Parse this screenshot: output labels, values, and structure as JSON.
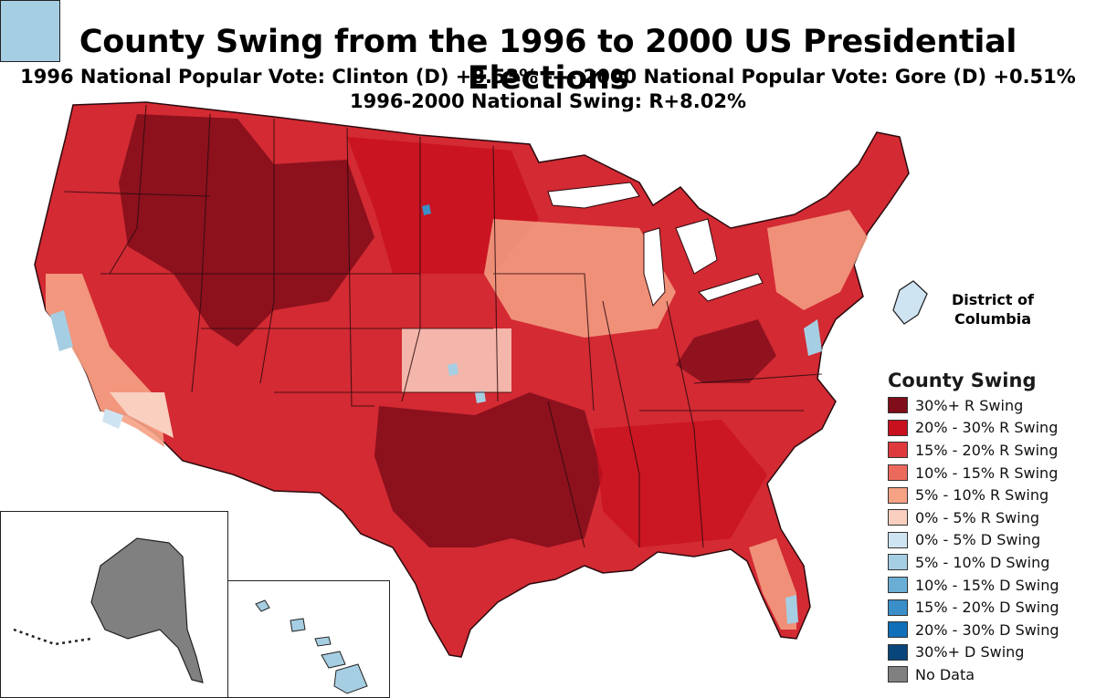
{
  "title": "County Swing from the 1996 to 2000 US Presidential Elections",
  "subtitle_1": "1996 National Popular Vote: Clinton (D) +8.53% ---- 2000 National Popular Vote: Gore (D) +0.51%",
  "subtitle_2": "1996-2000 National Swing: R+8.02%",
  "dc_label": "District of Columbia",
  "legend": {
    "title": "County Swing",
    "items": [
      {
        "label": "30%+ R Swing",
        "color": "#7f0d1a"
      },
      {
        "label": "20% - 30% R Swing",
        "color": "#c8101f"
      },
      {
        "label": "15% - 20% R Swing",
        "color": "#de3a3e"
      },
      {
        "label": "10% - 15% R Swing",
        "color": "#ec6a5c"
      },
      {
        "label": "5% - 10% R Swing",
        "color": "#f5a285"
      },
      {
        "label": "0% - 5% R Swing",
        "color": "#f9cfbf"
      },
      {
        "label": "0% - 5% D Swing",
        "color": "#cfe4f2"
      },
      {
        "label": "5% - 10% D Swing",
        "color": "#a6cee3"
      },
      {
        "label": "10% - 15% D Swing",
        "color": "#6aaed6"
      },
      {
        "label": "15% - 20% D Swing",
        "color": "#3a8fc9"
      },
      {
        "label": "20% - 30% D Swing",
        "color": "#0f6fb8"
      },
      {
        "label": "30%+ D Swing",
        "color": "#08457a"
      },
      {
        "label": "No Data",
        "color": "#808080"
      }
    ]
  },
  "region_colors": {
    "base_map": "#d32a33",
    "dark_r": "#7f0d1a",
    "mid_r": "#c8101f",
    "light_r": "#f5a285",
    "pale_r": "#f9cfbf",
    "d_swing": "#a6cee3",
    "no_data": "#808080",
    "border": "#2a0a0e"
  }
}
